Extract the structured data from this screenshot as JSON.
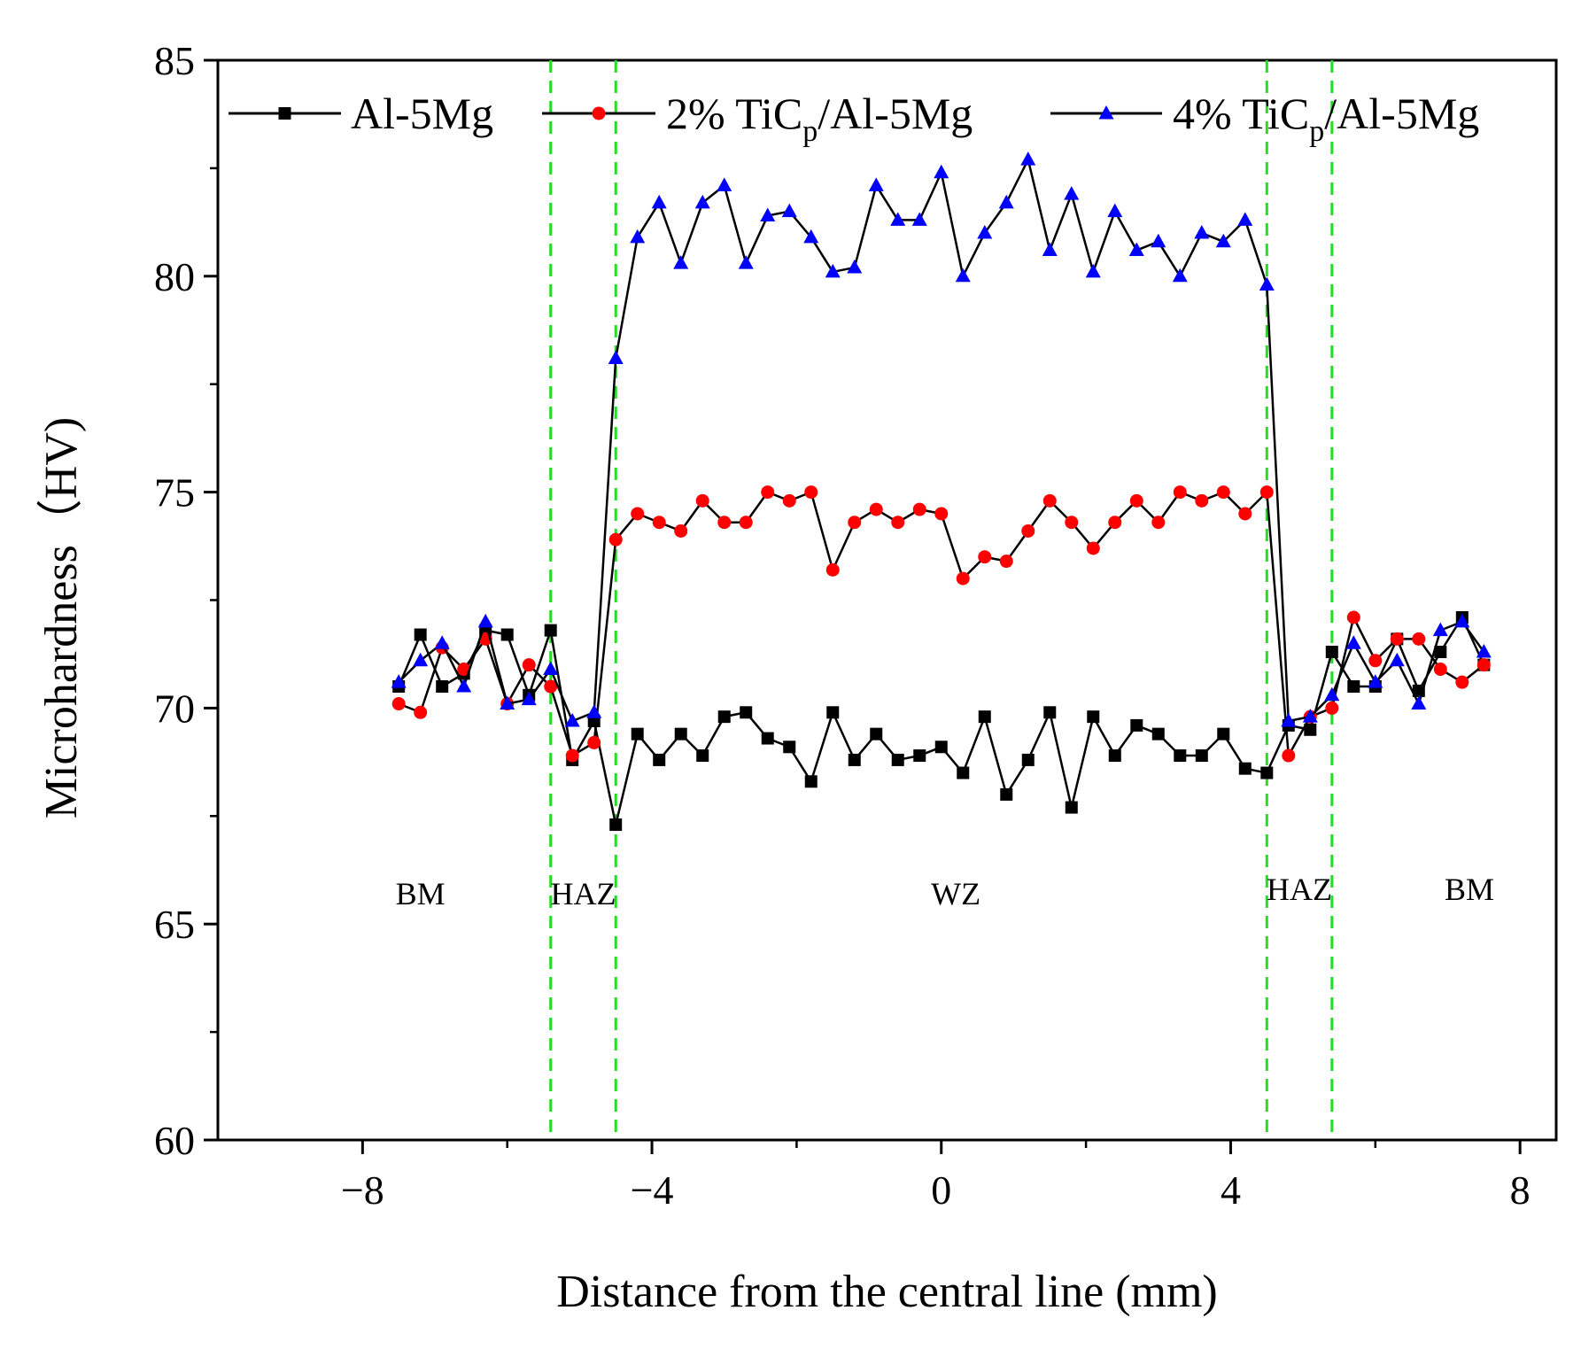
{
  "chart_data": {
    "type": "line",
    "title": "",
    "xlabel": "Distance from the central line (mm)",
    "ylabel": "Microhardness（HV)",
    "xlim": [
      -10,
      8.5
    ],
    "ylim": [
      60,
      85
    ],
    "xticks": [
      -8,
      -4,
      0,
      4,
      8
    ],
    "xtick_labels": [
      "−8",
      "−4",
      "0",
      "4",
      "8"
    ],
    "yticks": [
      60,
      65,
      70,
      75,
      80,
      85
    ],
    "ytick_labels": [
      "60",
      "65",
      "70",
      "75",
      "80",
      "85"
    ],
    "x": [
      -7.5,
      -7.2,
      -6.9,
      -6.6,
      -6.3,
      -6.0,
      -5.7,
      -5.4,
      -5.1,
      -4.8,
      -4.5,
      -4.2,
      -3.9,
      -3.6,
      -3.3,
      -3.0,
      -2.7,
      -2.4,
      -2.1,
      -1.8,
      -1.5,
      -1.2,
      -0.9,
      -0.6,
      -0.3,
      0.0,
      0.3,
      0.6,
      0.9,
      1.2,
      1.5,
      1.8,
      2.1,
      2.4,
      2.7,
      3.0,
      3.3,
      3.6,
      3.9,
      4.2,
      4.5,
      4.8,
      5.1,
      5.4,
      5.7,
      6.0,
      6.3,
      6.6,
      6.9,
      7.2,
      7.5
    ],
    "series": [
      {
        "name": "Al-5Mg",
        "color": "#000000",
        "marker": "square",
        "values": [
          70.5,
          71.7,
          70.5,
          70.8,
          71.8,
          71.7,
          70.3,
          71.8,
          68.8,
          69.7,
          67.3,
          69.4,
          68.8,
          69.4,
          68.9,
          69.8,
          69.9,
          69.3,
          69.1,
          68.3,
          69.9,
          68.8,
          69.4,
          68.8,
          68.9,
          69.1,
          68.5,
          69.8,
          68.0,
          68.8,
          69.9,
          67.7,
          69.8,
          68.9,
          69.6,
          69.4,
          68.9,
          68.9,
          69.4,
          68.6,
          68.5,
          69.6,
          69.5,
          71.3,
          70.5,
          70.5,
          71.6,
          70.4,
          71.3,
          72.1,
          71.0
        ]
      },
      {
        "name": "2% TiCp/Al-5Mg",
        "color": "#ff0000",
        "marker": "circle",
        "values": [
          70.1,
          69.9,
          71.4,
          70.9,
          71.6,
          70.1,
          71.0,
          70.5,
          68.9,
          69.2,
          73.9,
          74.5,
          74.3,
          74.1,
          74.8,
          74.3,
          74.3,
          75.0,
          74.8,
          75.0,
          73.2,
          74.3,
          74.6,
          74.3,
          74.6,
          74.5,
          73.0,
          73.5,
          73.4,
          74.1,
          74.8,
          74.3,
          73.7,
          74.3,
          74.8,
          74.3,
          75.0,
          74.8,
          75.0,
          74.5,
          75.0,
          68.9,
          69.8,
          70.0,
          72.1,
          71.1,
          71.6,
          71.6,
          70.9,
          70.6,
          71.0
        ]
      },
      {
        "name": "4% TiCp/Al-5Mg",
        "color": "#0000ff",
        "marker": "triangle",
        "values": [
          70.6,
          71.1,
          71.5,
          70.5,
          72.0,
          70.1,
          70.2,
          70.9,
          69.7,
          69.9,
          78.1,
          80.9,
          81.7,
          80.3,
          81.7,
          82.1,
          80.3,
          81.4,
          81.5,
          80.9,
          80.1,
          80.2,
          82.1,
          81.3,
          81.3,
          82.4,
          80.0,
          81.0,
          81.7,
          82.7,
          80.6,
          81.9,
          80.1,
          81.5,
          80.6,
          80.8,
          80.0,
          81.0,
          80.8,
          81.3,
          79.8,
          69.7,
          69.8,
          70.3,
          71.5,
          70.6,
          71.1,
          70.1,
          71.8,
          72.0,
          71.3
        ]
      }
    ],
    "vlines": [
      -5.4,
      -4.5,
      4.5,
      5.4
    ],
    "zones": [
      {
        "label": "BM",
        "x": -7.2,
        "y": 65.7
      },
      {
        "label": "HAZ",
        "x": -4.95,
        "y": 65.7
      },
      {
        "label": "WZ",
        "x": 0.2,
        "y": 65.7
      },
      {
        "label": "HAZ",
        "x": 4.95,
        "y": 65.8
      },
      {
        "label": "BM",
        "x": 7.3,
        "y": 65.8
      }
    ],
    "legend_position": "top",
    "grid": false
  }
}
